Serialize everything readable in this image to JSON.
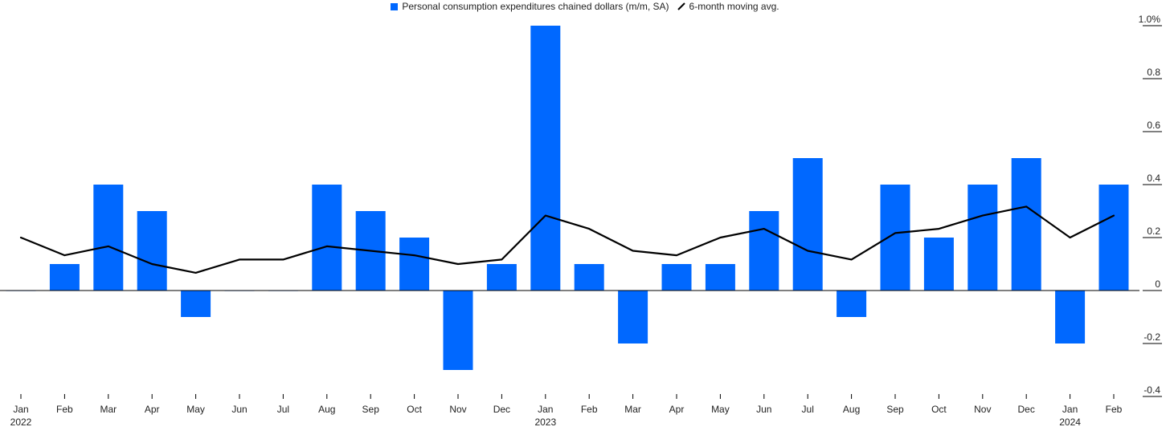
{
  "legend": {
    "bar_label": "Personal consumption expenditures chained dollars (m/m, SA)",
    "line_label": "6-month moving avg."
  },
  "colors": {
    "bar": "#0068ff",
    "line": "#000000",
    "grid": "#000000"
  },
  "chart_data": {
    "type": "bar",
    "categories": [
      "Jan",
      "Feb",
      "Mar",
      "Apr",
      "May",
      "Jun",
      "Jul",
      "Aug",
      "Sep",
      "Oct",
      "Nov",
      "Dec",
      "Jan",
      "Feb",
      "Mar",
      "Apr",
      "May",
      "Jun",
      "Jul",
      "Aug",
      "Sep",
      "Oct",
      "Nov",
      "Dec",
      "Jan",
      "Feb"
    ],
    "year_labels": [
      {
        "index": 0,
        "label": "2022"
      },
      {
        "index": 12,
        "label": "2023"
      },
      {
        "index": 24,
        "label": "2024"
      }
    ],
    "series": [
      {
        "name": "Personal consumption expenditures chained dollars (m/m, SA)",
        "type": "bar",
        "values": [
          0.0,
          0.1,
          0.4,
          0.3,
          -0.1,
          0.0,
          0.0,
          0.4,
          0.3,
          0.2,
          -0.3,
          0.1,
          1.0,
          0.1,
          -0.2,
          0.1,
          0.1,
          0.3,
          0.5,
          -0.1,
          0.4,
          0.2,
          0.4,
          0.5,
          -0.2,
          0.4
        ]
      },
      {
        "name": "6-month moving avg.",
        "type": "line",
        "values": [
          0.2,
          0.133,
          0.167,
          0.1,
          0.067,
          0.117,
          0.117,
          0.167,
          0.15,
          0.133,
          0.1,
          0.117,
          0.283,
          0.233,
          0.15,
          0.133,
          0.2,
          0.233,
          0.15,
          0.117,
          0.217,
          0.233,
          0.283,
          0.317,
          0.2,
          0.283
        ]
      }
    ],
    "y_ticks": [
      {
        "value": 1.0,
        "label": "1.0%"
      },
      {
        "value": 0.8,
        "label": "0.8"
      },
      {
        "value": 0.6,
        "label": "0.6"
      },
      {
        "value": 0.4,
        "label": "0.4"
      },
      {
        "value": 0.2,
        "label": "0.2"
      },
      {
        "value": 0.0,
        "label": "0"
      },
      {
        "value": -0.2,
        "label": "-0.2"
      },
      {
        "value": -0.4,
        "label": "-0.4"
      }
    ],
    "ylim": [
      -0.4,
      1.0
    ],
    "y_axis_position": "right",
    "legend_position": "top-center",
    "grid": false
  }
}
